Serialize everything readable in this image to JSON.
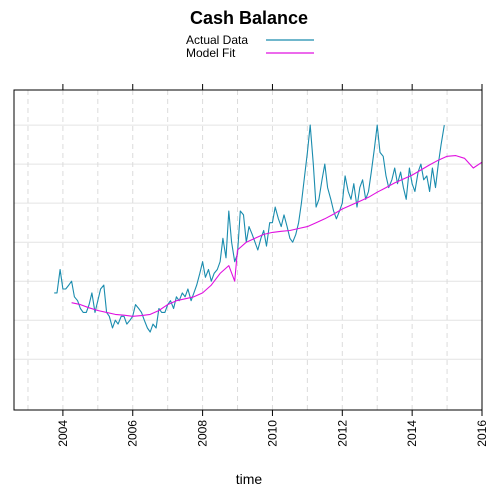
{
  "chart_data": {
    "type": "line",
    "title": "Cash Balance",
    "xlabel": "time",
    "ylabel": "",
    "xlim": [
      2002.6,
      2016.0
    ],
    "ylim": [
      -2.3,
      5.9
    ],
    "x_ticks": [
      2004,
      2006,
      2008,
      2010,
      2012,
      2014,
      2016
    ],
    "y_ticks": [
      -1,
      0,
      1,
      2,
      3,
      4,
      5
    ],
    "y_tick_labels_shown": false,
    "grid": true,
    "legend_position": "top-center",
    "series": [
      {
        "name": "Actual Data",
        "color": "#1a8cae",
        "x": [
          2003.75,
          2003.83,
          2003.92,
          2004.0,
          2004.08,
          2004.17,
          2004.25,
          2004.33,
          2004.42,
          2004.5,
          2004.58,
          2004.67,
          2004.75,
          2004.83,
          2004.92,
          2005.0,
          2005.08,
          2005.17,
          2005.25,
          2005.33,
          2005.42,
          2005.5,
          2005.58,
          2005.67,
          2005.75,
          2005.83,
          2005.92,
          2006.0,
          2006.08,
          2006.17,
          2006.25,
          2006.33,
          2006.42,
          2006.5,
          2006.58,
          2006.67,
          2006.75,
          2006.83,
          2006.92,
          2007.0,
          2007.08,
          2007.17,
          2007.25,
          2007.33,
          2007.42,
          2007.5,
          2007.58,
          2007.67,
          2007.75,
          2007.83,
          2007.92,
          2008.0,
          2008.08,
          2008.17,
          2008.25,
          2008.33,
          2008.42,
          2008.5,
          2008.58,
          2008.67,
          2008.75,
          2008.83,
          2008.92,
          2009.0,
          2009.08,
          2009.17,
          2009.25,
          2009.33,
          2009.42,
          2009.5,
          2009.58,
          2009.67,
          2009.75,
          2009.83,
          2009.92,
          2010.0,
          2010.08,
          2010.17,
          2010.25,
          2010.33,
          2010.42,
          2010.5,
          2010.58,
          2010.67,
          2010.75,
          2010.83,
          2010.92,
          2011.0,
          2011.08,
          2011.17,
          2011.25,
          2011.33,
          2011.42,
          2011.5,
          2011.58,
          2011.67,
          2011.75,
          2011.83,
          2011.92,
          2012.0,
          2012.08,
          2012.17,
          2012.25,
          2012.33,
          2012.42,
          2012.5,
          2012.58,
          2012.67,
          2012.75,
          2012.83,
          2012.92,
          2013.0,
          2013.08,
          2013.17,
          2013.25,
          2013.33,
          2013.42,
          2013.5,
          2013.58,
          2013.67,
          2013.75,
          2013.83,
          2013.92,
          2014.0,
          2014.08,
          2014.17,
          2014.25,
          2014.33,
          2014.42,
          2014.5,
          2014.58,
          2014.67,
          2014.75,
          2014.83,
          2014.92
        ],
        "y": [
          0.7,
          0.7,
          1.3,
          0.8,
          0.8,
          0.9,
          1.0,
          0.6,
          0.5,
          0.3,
          0.2,
          0.2,
          0.4,
          0.7,
          0.2,
          0.5,
          0.8,
          0.9,
          0.2,
          0.1,
          -0.2,
          0.0,
          -0.1,
          0.1,
          0.1,
          -0.1,
          0.0,
          0.1,
          0.4,
          0.3,
          0.2,
          0.0,
          -0.2,
          -0.3,
          -0.1,
          -0.2,
          0.3,
          0.2,
          0.2,
          0.4,
          0.5,
          0.3,
          0.6,
          0.5,
          0.7,
          0.6,
          0.8,
          0.5,
          0.7,
          0.9,
          1.2,
          1.5,
          1.1,
          1.3,
          1.0,
          1.2,
          1.3,
          1.5,
          2.1,
          1.6,
          2.8,
          2.0,
          1.5,
          1.7,
          2.8,
          2.7,
          2.0,
          2.4,
          2.2,
          2.0,
          1.8,
          2.1,
          2.3,
          1.9,
          2.5,
          2.5,
          2.9,
          2.6,
          2.4,
          2.7,
          2.4,
          2.1,
          2.0,
          2.2,
          2.5,
          3.0,
          3.7,
          4.3,
          5.0,
          4.0,
          2.9,
          3.1,
          3.6,
          4.0,
          3.4,
          3.1,
          2.8,
          2.6,
          2.8,
          3.0,
          3.7,
          3.3,
          3.1,
          3.5,
          2.9,
          3.4,
          3.6,
          3.1,
          3.3,
          3.8,
          4.4,
          5.0,
          4.3,
          4.2,
          3.7,
          3.4,
          3.6,
          3.9,
          3.5,
          3.8,
          3.4,
          3.1,
          3.9,
          3.5,
          3.3,
          3.8,
          4.0,
          3.6,
          3.7,
          3.3,
          3.9,
          3.4,
          4.0,
          4.5,
          5.0
        ]
      },
      {
        "name": "Model Fit",
        "color": "#e010e0",
        "x": [
          2004.25,
          2004.5,
          2004.75,
          2005.0,
          2005.25,
          2005.5,
          2005.75,
          2006.0,
          2006.25,
          2006.5,
          2006.75,
          2007.0,
          2007.25,
          2007.5,
          2007.75,
          2008.0,
          2008.25,
          2008.5,
          2008.75,
          2008.92,
          2009.0,
          2009.25,
          2009.5,
          2009.75,
          2010.0,
          2010.25,
          2010.5,
          2010.75,
          2011.0,
          2011.25,
          2011.5,
          2011.75,
          2012.0,
          2012.25,
          2012.5,
          2012.75,
          2013.0,
          2013.25,
          2013.5,
          2013.75,
          2014.0,
          2014.25,
          2014.5,
          2014.75,
          2015.0,
          2015.25,
          2015.5,
          2015.75,
          2016.0
        ],
        "y": [
          0.45,
          0.4,
          0.32,
          0.25,
          0.2,
          0.15,
          0.13,
          0.1,
          0.12,
          0.15,
          0.25,
          0.4,
          0.5,
          0.55,
          0.6,
          0.7,
          0.9,
          1.2,
          1.4,
          1.0,
          1.8,
          2.0,
          2.1,
          2.2,
          2.25,
          2.28,
          2.3,
          2.35,
          2.4,
          2.5,
          2.6,
          2.72,
          2.85,
          2.95,
          3.05,
          3.15,
          3.28,
          3.4,
          3.52,
          3.62,
          3.72,
          3.85,
          3.98,
          4.1,
          4.2,
          4.22,
          4.15,
          3.9,
          4.05
        ]
      }
    ]
  }
}
